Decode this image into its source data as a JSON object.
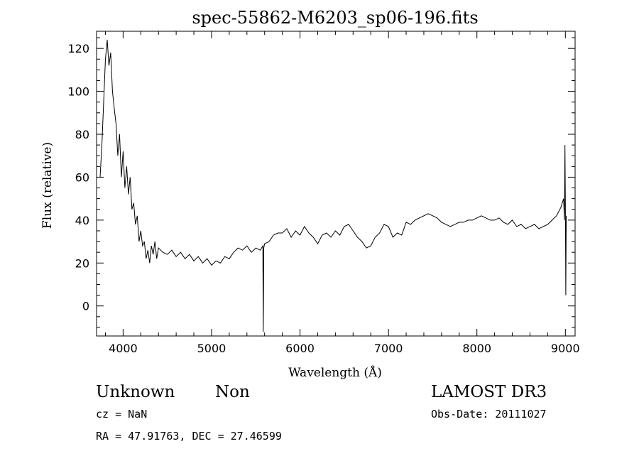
{
  "chart_data": {
    "type": "line",
    "title": "spec-55862-M6203_sp06-196.fits",
    "xlabel": "Wavelength (Å)",
    "ylabel": "Flux (relative)",
    "xlim": [
      3700,
      9110
    ],
    "ylim": [
      -14,
      128
    ],
    "xticks": [
      4000,
      5000,
      6000,
      7000,
      8000,
      9000
    ],
    "yticks": [
      0,
      20,
      40,
      60,
      80,
      100,
      120
    ],
    "grid": false,
    "line_color": "#000000",
    "series": [
      {
        "x": [
          3740,
          3760,
          3780,
          3800,
          3820,
          3840,
          3860,
          3880,
          3900,
          3920,
          3940,
          3960,
          3980,
          4000,
          4020,
          4040,
          4060,
          4080,
          4100,
          4120,
          4140,
          4160,
          4180,
          4200,
          4220,
          4240,
          4260,
          4280,
          4300,
          4320,
          4340,
          4360,
          4380,
          4400,
          4450,
          4500,
          4550,
          4600,
          4650,
          4700,
          4750,
          4800,
          4850,
          4900,
          4950,
          5000,
          5050,
          5100,
          5150,
          5200,
          5250,
          5300,
          5350,
          5400,
          5450,
          5500,
          5550,
          5580,
          5585,
          5590,
          5600,
          5650,
          5700,
          5750,
          5800,
          5850,
          5900,
          5950,
          6000,
          6050,
          6100,
          6150,
          6200,
          6250,
          6300,
          6350,
          6400,
          6450,
          6500,
          6550,
          6600,
          6650,
          6700,
          6750,
          6800,
          6850,
          6900,
          6950,
          7000,
          7050,
          7100,
          7150,
          7200,
          7250,
          7300,
          7350,
          7400,
          7450,
          7500,
          7550,
          7600,
          7650,
          7700,
          7750,
          7800,
          7850,
          7900,
          7950,
          8000,
          8050,
          8100,
          8150,
          8200,
          8250,
          8300,
          8350,
          8400,
          8450,
          8500,
          8550,
          8600,
          8650,
          8700,
          8750,
          8800,
          8850,
          8900,
          8950,
          8980,
          8990,
          8995,
          9000,
          9005,
          9010
        ],
        "y": [
          60,
          75,
          95,
          115,
          124,
          112,
          118,
          100,
          92,
          85,
          70,
          80,
          60,
          72,
          55,
          65,
          52,
          60,
          45,
          48,
          38,
          42,
          30,
          35,
          28,
          30,
          22,
          26,
          20,
          28,
          24,
          30,
          22,
          27,
          25,
          24,
          26,
          23,
          25,
          22,
          24,
          21,
          23,
          20,
          22,
          19,
          21,
          20,
          23,
          22,
          25,
          27,
          26,
          28,
          25,
          27,
          26,
          28,
          -12,
          27,
          29,
          30,
          33,
          34,
          34,
          36,
          32,
          35,
          33,
          37,
          34,
          32,
          29,
          33,
          34,
          32,
          35,
          33,
          37,
          38,
          35,
          32,
          30,
          27,
          28,
          32,
          34,
          38,
          37,
          32,
          34,
          33,
          39,
          38,
          40,
          41,
          42,
          43,
          42,
          41,
          39,
          38,
          37,
          38,
          39,
          39,
          40,
          40,
          41,
          42,
          41,
          40,
          40,
          41,
          39,
          38,
          40,
          37,
          38,
          36,
          37,
          38,
          36,
          37,
          38,
          40,
          42,
          46,
          50,
          40,
          75,
          48,
          5,
          42
        ]
      }
    ]
  },
  "annotations": {
    "class": "Unknown",
    "subclass": "Non",
    "survey": "LAMOST DR3",
    "cz": "cz = NaN",
    "obs_date": "Obs-Date: 20111027",
    "coords": "RA =  47.91763, DEC =  27.46599"
  }
}
